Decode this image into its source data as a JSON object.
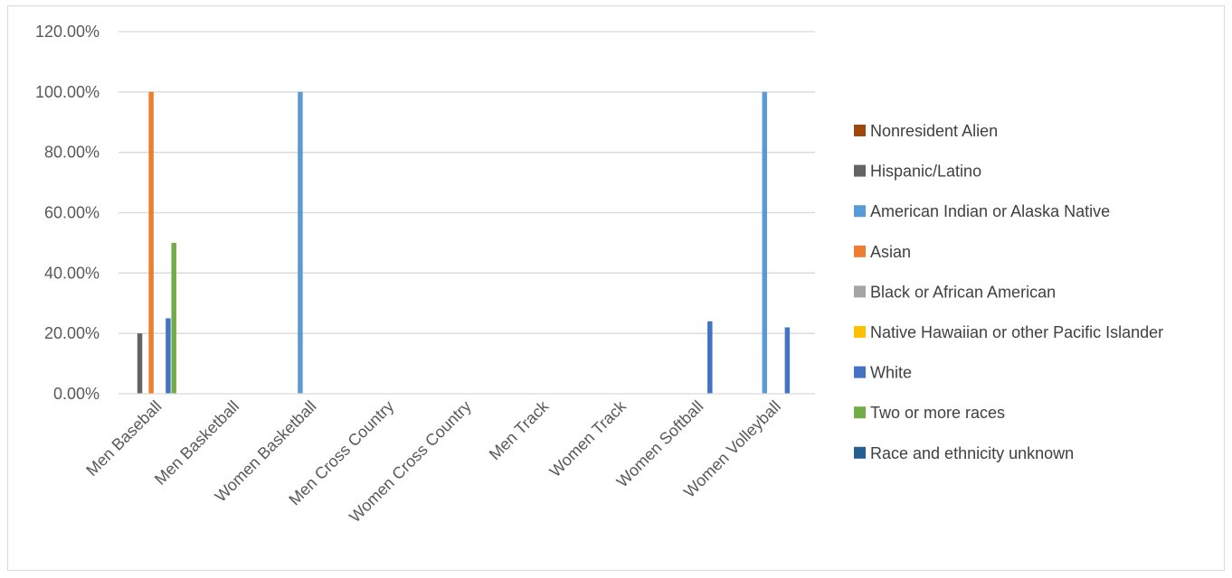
{
  "chart_data": {
    "type": "bar",
    "title": "",
    "xlabel": "",
    "ylabel": "",
    "ylim": [
      0,
      1.2
    ],
    "y_ticks": [
      "0.00%",
      "20.00%",
      "40.00%",
      "60.00%",
      "80.00%",
      "100.00%",
      "120.00%"
    ],
    "y_tick_values": [
      0,
      0.2,
      0.4,
      0.6,
      0.8,
      1.0,
      1.2
    ],
    "grid": true,
    "legend_position": "right",
    "categories": [
      "Men Baseball",
      "Men Basketball",
      "Women Basketball",
      "Men Cross Country",
      "Women Cross Country",
      "Men Track",
      "Women Track",
      "Women Softball",
      "Women Volleyball"
    ],
    "series": [
      {
        "name": "Nonresident Alien",
        "color": "#9e480e",
        "values": [
          0,
          0,
          0,
          0,
          0,
          0,
          0,
          0,
          0
        ]
      },
      {
        "name": "Hispanic/Latino",
        "color": "#636363",
        "values": [
          0.2,
          0,
          0,
          0,
          0,
          0,
          0,
          0,
          0
        ]
      },
      {
        "name": "American Indian or Alaska Native",
        "color": "#5b9bd5",
        "values": [
          0,
          0,
          1.0,
          0,
          0,
          0,
          0,
          0,
          1.0
        ]
      },
      {
        "name": "Asian",
        "color": "#ed7d31",
        "values": [
          1.0,
          0,
          0,
          0,
          0,
          0,
          0,
          0,
          0
        ]
      },
      {
        "name": "Black or African American",
        "color": "#a5a5a5",
        "values": [
          0,
          0,
          0,
          0,
          0,
          0,
          0,
          0,
          0
        ]
      },
      {
        "name": "Native Hawaiian or other Pacific Islander",
        "color": "#ffc000",
        "values": [
          0,
          0,
          0,
          0,
          0,
          0,
          0,
          0,
          0
        ]
      },
      {
        "name": "White",
        "color": "#4472c4",
        "values": [
          0.25,
          0,
          0,
          0,
          0,
          0,
          0,
          0.24,
          0.22
        ]
      },
      {
        "name": "Two or more races",
        "color": "#70ad47",
        "values": [
          0.5,
          0,
          0,
          0,
          0,
          0,
          0,
          0,
          0
        ]
      },
      {
        "name": "Race and ethnicity unknown",
        "color": "#255e91",
        "values": [
          0,
          0,
          0,
          0,
          0,
          0,
          0,
          0,
          0
        ]
      }
    ],
    "colors": {
      "gridline": "#d9d9d9",
      "axis": "#d9d9d9",
      "frame": "#d9d9d9"
    }
  }
}
